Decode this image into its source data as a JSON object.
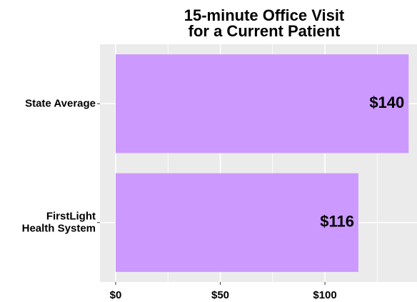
{
  "chart_data": {
    "type": "hbar",
    "title": "15-minute Office Visit\nfor a Current Patient",
    "categories": [
      "State Average",
      "FirstLight\nHealth System"
    ],
    "values": [
      140,
      116
    ],
    "value_labels": [
      "$140",
      "$116"
    ],
    "color": "#cc99ff",
    "xlim": [
      -7.5,
      144
    ],
    "xticks": [
      {
        "value": 0,
        "label": "$0"
      },
      {
        "value": 50,
        "label": "$50"
      },
      {
        "value": 100,
        "label": "$100"
      }
    ],
    "minor_xticks": [
      25,
      75,
      125
    ],
    "grid": true
  }
}
